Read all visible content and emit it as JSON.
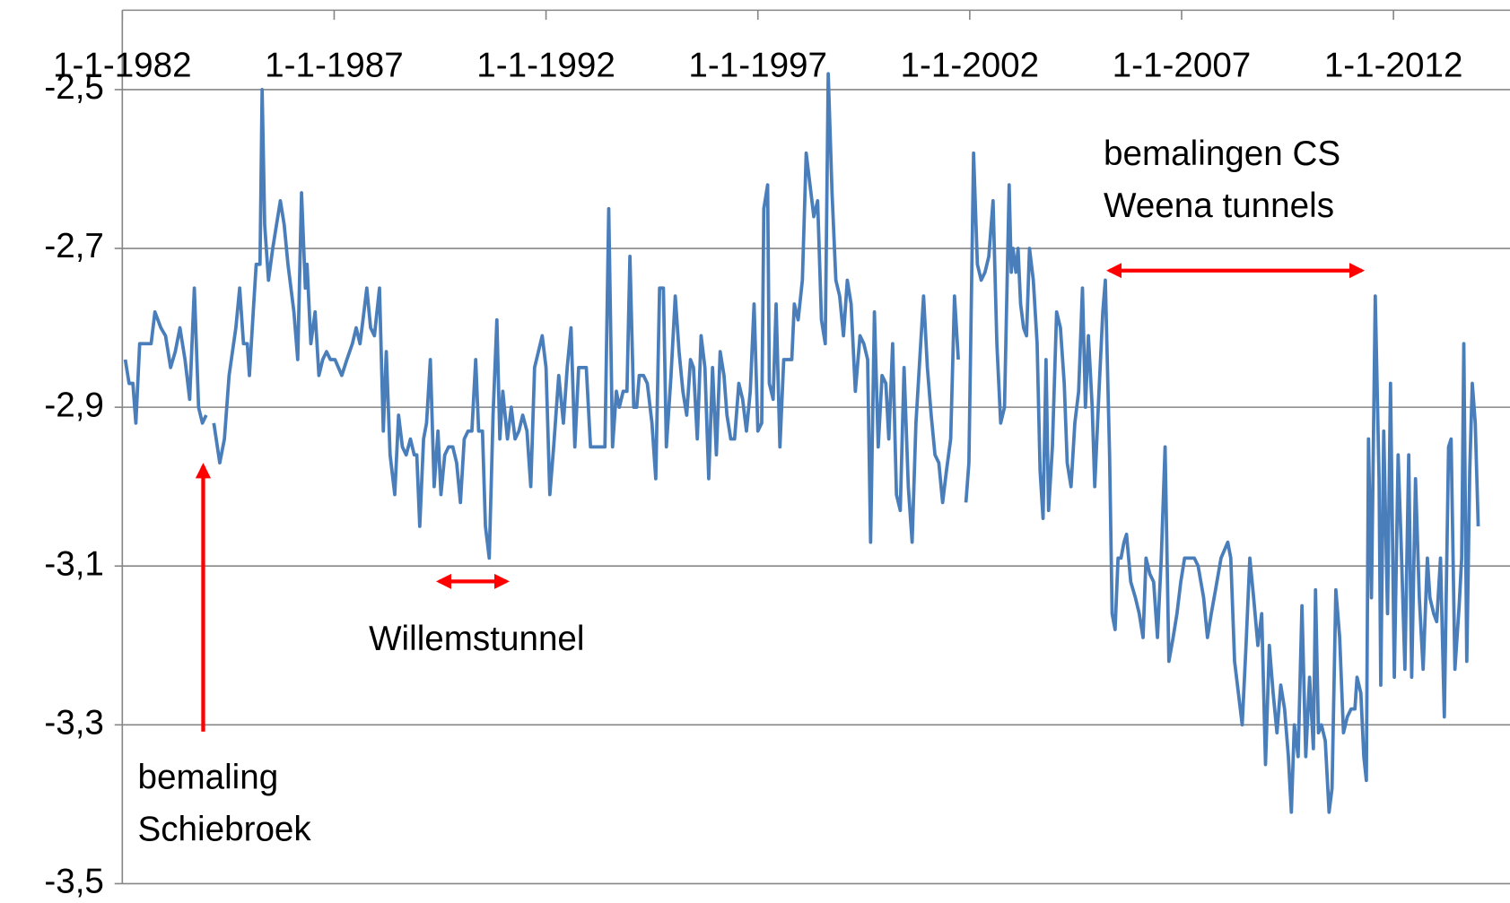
{
  "chart_data": {
    "type": "line",
    "annotations": [
      "bemalingen CS",
      "Weena tunnels",
      "Willemstunnel",
      "bemaling",
      "Schiebroek"
    ],
    "xlim": [
      1982,
      2014.75
    ],
    "xticks": [
      {
        "value": 1982,
        "label": "1-1-1982"
      },
      {
        "value": 1987,
        "label": "1-1-1987"
      },
      {
        "value": 1992,
        "label": "1-1-1992"
      },
      {
        "value": 1997,
        "label": "1-1-1997"
      },
      {
        "value": 2002,
        "label": "1-1-2002"
      },
      {
        "value": 2007,
        "label": "1-1-2007"
      },
      {
        "value": 2012,
        "label": "1-1-2012"
      }
    ],
    "ylim": [
      -3.5,
      -2.4
    ],
    "yticks": [
      {
        "value": -2.5,
        "label": "-2,5"
      },
      {
        "value": -2.7,
        "label": "-2,7"
      },
      {
        "value": -2.9,
        "label": "-2,9"
      },
      {
        "value": -3.1,
        "label": "-3,1"
      },
      {
        "value": -3.3,
        "label": "-3,3"
      },
      {
        "value": -3.5,
        "label": "-3,5"
      }
    ],
    "grid": true,
    "x": [
      1982.07,
      1982.16,
      1982.25,
      1982.32,
      1982.41,
      1982.52,
      1982.68,
      1982.77,
      1982.91,
      1983.02,
      1983.14,
      1983.25,
      1983.36,
      1983.48,
      1983.59,
      1983.7,
      1983.8,
      1983.89,
      1983.98,
      null,
      1984.16,
      1984.3,
      1984.41,
      1984.52,
      1984.68,
      1984.77,
      1984.86,
      1984.95,
      1985.0,
      1985.09,
      1985.16,
      1985.25,
      1985.3,
      1985.36,
      1985.45,
      1985.55,
      1985.64,
      1985.73,
      1985.82,
      1985.91,
      1986.05,
      1986.14,
      1986.23,
      1986.32,
      1986.36,
      1986.45,
      1986.55,
      1986.64,
      1986.73,
      1986.82,
      1986.91,
      1987.02,
      1987.18,
      1987.3,
      1987.43,
      1987.52,
      1987.61,
      1987.68,
      1987.77,
      1987.86,
      1987.95,
      1988.07,
      1988.16,
      1988.23,
      1988.32,
      1988.43,
      1988.52,
      1988.61,
      1988.7,
      1988.8,
      1988.89,
      1988.95,
      1989.02,
      1989.11,
      1989.18,
      1989.27,
      1989.36,
      1989.45,
      1989.52,
      1989.61,
      1989.7,
      1989.8,
      1989.89,
      1989.98,
      1990.07,
      1990.16,
      1990.25,
      1990.34,
      1990.41,
      1990.5,
      1990.57,
      1990.66,
      1990.75,
      1990.84,
      1990.91,
      1990.98,
      1991.09,
      1991.18,
      1991.27,
      1991.36,
      1991.45,
      1991.55,
      1991.64,
      1991.73,
      1991.82,
      1991.91,
      1992.0,
      1992.09,
      1992.18,
      1992.3,
      1992.41,
      1992.5,
      1992.59,
      1992.68,
      1992.77,
      1992.86,
      1992.95,
      1993.05,
      1993.14,
      1993.23,
      1993.32,
      1993.39,
      1993.48,
      1993.57,
      1993.66,
      1993.73,
      1993.82,
      1993.91,
      1993.98,
      1994.07,
      1994.14,
      1994.2,
      1994.3,
      1994.39,
      1994.5,
      1994.59,
      1994.68,
      1994.77,
      1994.84,
      1994.95,
      1995.05,
      1995.14,
      1995.23,
      1995.32,
      1995.41,
      1995.48,
      1995.57,
      1995.66,
      1995.75,
      1995.84,
      1995.93,
      1996.02,
      1996.11,
      1996.2,
      1996.27,
      1996.36,
      1996.45,
      1996.55,
      1996.64,
      1996.73,
      1996.82,
      1996.91,
      1997.0,
      1997.09,
      1997.14,
      1997.23,
      1997.27,
      1997.36,
      1997.43,
      1997.52,
      1997.61,
      1997.7,
      1997.8,
      1997.86,
      1997.95,
      1998.05,
      1998.14,
      1998.23,
      1998.32,
      1998.41,
      1998.5,
      1998.59,
      1998.66,
      1998.75,
      1998.84,
      1998.93,
      1999.02,
      1999.11,
      1999.2,
      1999.3,
      1999.41,
      1999.5,
      1999.59,
      1999.66,
      1999.75,
      1999.84,
      1999.93,
      2000.02,
      2000.09,
      2000.18,
      2000.27,
      2000.36,
      2000.45,
      2000.55,
      2000.64,
      2000.73,
      2000.82,
      2000.91,
      2001.0,
      2001.09,
      2001.18,
      2001.27,
      2001.36,
      2001.45,
      2001.55,
      2001.64,
      2001.73,
      null,
      2001.91,
      2001.98,
      2002.09,
      2002.18,
      2002.27,
      2002.36,
      2002.45,
      2002.55,
      2002.64,
      2002.73,
      2002.82,
      2002.93,
      2002.98,
      2003.02,
      2003.09,
      2003.14,
      2003.2,
      2003.27,
      2003.34,
      2003.41,
      2003.5,
      2003.59,
      2003.66,
      2003.73,
      2003.8,
      2003.86,
      2003.95,
      2004.05,
      2004.14,
      2004.23,
      2004.3,
      2004.39,
      2004.48,
      2004.57,
      2004.66,
      2004.73,
      2004.8,
      2004.89,
      2004.95,
      2005.05,
      2005.14,
      2005.2,
      2005.3,
      2005.36,
      2005.43,
      2005.5,
      2005.57,
      2005.64,
      2005.7,
      2005.8,
      2005.91,
      2006.0,
      2006.09,
      2006.16,
      2006.25,
      2006.34,
      2006.43,
      2006.52,
      2006.61,
      2006.7,
      2006.8,
      2006.89,
      2006.98,
      2007.07,
      2007.16,
      2007.3,
      2007.39,
      2007.52,
      2007.61,
      2007.7,
      2007.8,
      2007.93,
      2008.09,
      2008.16,
      2008.25,
      2008.34,
      2008.43,
      2008.52,
      2008.61,
      2008.7,
      2008.8,
      2008.89,
      2008.98,
      2009.07,
      2009.16,
      2009.25,
      2009.34,
      2009.43,
      2009.52,
      2009.59,
      2009.66,
      2009.75,
      2009.84,
      2009.93,
      2010.02,
      2010.11,
      2010.16,
      2010.23,
      2010.3,
      2010.39,
      2010.48,
      2010.55,
      2010.64,
      2010.73,
      2010.82,
      2010.91,
      2011.0,
      2011.09,
      2011.14,
      2011.23,
      2011.3,
      2011.36,
      2011.41,
      2011.48,
      2011.57,
      2011.66,
      2011.7,
      2011.77,
      2011.86,
      2011.93,
      2012.02,
      2012.11,
      2012.18,
      2012.27,
      2012.36,
      2012.43,
      2012.52,
      2012.61,
      2012.7,
      2012.8,
      2012.86,
      2012.95,
      2013.02,
      2013.11,
      2013.2,
      2013.3,
      2013.36,
      2013.45,
      2013.55,
      2013.61,
      2013.66,
      2013.73,
      2013.8,
      2013.86,
      2013.93,
      2014.0
    ],
    "series": [
      {
        "color": "#4a7ebb",
        "values": [
          -2.84,
          -2.87,
          -2.87,
          -2.92,
          -2.82,
          -2.82,
          -2.82,
          -2.78,
          -2.8,
          -2.81,
          -2.85,
          -2.83,
          -2.8,
          -2.84,
          -2.89,
          -2.75,
          -2.9,
          -2.92,
          -2.91,
          null,
          -2.92,
          -2.97,
          -2.94,
          -2.86,
          -2.8,
          -2.75,
          -2.82,
          -2.82,
          -2.86,
          -2.78,
          -2.72,
          -2.72,
          -2.5,
          -2.67,
          -2.74,
          -2.7,
          -2.67,
          -2.64,
          -2.67,
          -2.72,
          -2.78,
          -2.84,
          -2.63,
          -2.75,
          -2.72,
          -2.82,
          -2.78,
          -2.86,
          -2.84,
          -2.83,
          -2.84,
          -2.84,
          -2.86,
          -2.84,
          -2.82,
          -2.8,
          -2.82,
          -2.79,
          -2.75,
          -2.8,
          -2.81,
          -2.75,
          -2.93,
          -2.83,
          -2.96,
          -3.01,
          -2.91,
          -2.95,
          -2.96,
          -2.94,
          -2.96,
          -2.96,
          -3.05,
          -2.94,
          -2.92,
          -2.84,
          -3.0,
          -2.93,
          -3.01,
          -2.96,
          -2.95,
          -2.95,
          -2.97,
          -3.02,
          -2.94,
          -2.93,
          -2.93,
          -2.84,
          -2.93,
          -2.93,
          -3.05,
          -3.09,
          -2.91,
          -2.79,
          -2.94,
          -2.88,
          -2.94,
          -2.9,
          -2.94,
          -2.93,
          -2.91,
          -2.93,
          -3.0,
          -2.85,
          -2.83,
          -2.81,
          -2.85,
          -3.01,
          -2.95,
          -2.86,
          -2.92,
          -2.85,
          -2.8,
          -2.95,
          -2.85,
          -2.85,
          -2.85,
          -2.95,
          -2.95,
          -2.95,
          -2.95,
          -2.95,
          -2.65,
          -2.95,
          -2.88,
          -2.9,
          -2.88,
          -2.88,
          -2.71,
          -2.9,
          -2.9,
          -2.86,
          -2.86,
          -2.87,
          -2.92,
          -2.99,
          -2.75,
          -2.75,
          -2.95,
          -2.86,
          -2.76,
          -2.83,
          -2.88,
          -2.91,
          -2.84,
          -2.85,
          -2.94,
          -2.81,
          -2.85,
          -2.99,
          -2.85,
          -2.96,
          -2.83,
          -2.86,
          -2.91,
          -2.94,
          -2.94,
          -2.87,
          -2.89,
          -2.93,
          -2.88,
          -2.77,
          -2.93,
          -2.92,
          -2.65,
          -2.62,
          -2.87,
          -2.89,
          -2.77,
          -2.95,
          -2.84,
          -2.84,
          -2.84,
          -2.77,
          -2.79,
          -2.74,
          -2.58,
          -2.62,
          -2.66,
          -2.64,
          -2.79,
          -2.82,
          -2.48,
          -2.63,
          -2.74,
          -2.76,
          -2.81,
          -2.74,
          -2.77,
          -2.88,
          -2.81,
          -2.82,
          -2.84,
          -3.07,
          -2.78,
          -2.95,
          -2.86,
          -2.87,
          -2.94,
          -2.82,
          -3.01,
          -3.03,
          -2.85,
          -3.0,
          -3.07,
          -2.92,
          -2.84,
          -2.76,
          -2.85,
          -2.91,
          -2.96,
          -2.97,
          -3.02,
          -2.98,
          -2.94,
          -2.76,
          -2.84,
          null,
          -3.02,
          -2.97,
          -2.58,
          -2.72,
          -2.74,
          -2.73,
          -2.71,
          -2.64,
          -2.82,
          -2.92,
          -2.9,
          -2.62,
          -2.73,
          -2.7,
          -2.73,
          -2.7,
          -2.77,
          -2.8,
          -2.81,
          -2.7,
          -2.74,
          -2.82,
          -2.98,
          -3.04,
          -2.84,
          -3.03,
          -2.95,
          -2.78,
          -2.8,
          -2.87,
          -2.97,
          -3.0,
          -2.92,
          -2.88,
          -2.75,
          -2.9,
          -2.81,
          -2.9,
          -3.0,
          -2.88,
          -2.78,
          -2.74,
          -2.96,
          -3.16,
          -3.18,
          -3.09,
          -3.09,
          -3.07,
          -3.06,
          -3.12,
          -3.14,
          -3.16,
          -3.19,
          -3.09,
          -3.11,
          -3.12,
          -3.19,
          -3.09,
          -2.95,
          -3.22,
          -3.19,
          -3.16,
          -3.12,
          -3.09,
          -3.09,
          -3.09,
          -3.1,
          -3.14,
          -3.19,
          -3.16,
          -3.13,
          -3.09,
          -3.07,
          -3.09,
          -3.22,
          -3.26,
          -3.3,
          -3.2,
          -3.09,
          -3.14,
          -3.2,
          -3.16,
          -3.35,
          -3.2,
          -3.26,
          -3.31,
          -3.25,
          -3.28,
          -3.34,
          -3.41,
          -3.3,
          -3.34,
          -3.15,
          -3.34,
          -3.24,
          -3.33,
          -3.13,
          -3.31,
          -3.3,
          -3.32,
          -3.41,
          -3.38,
          -3.13,
          -3.19,
          -3.31,
          -3.29,
          -3.28,
          -3.28,
          -3.24,
          -3.26,
          -3.34,
          -3.37,
          -2.94,
          -3.14,
          -2.76,
          -2.99,
          -3.25,
          -2.93,
          -3.16,
          -2.87,
          -3.24,
          -2.96,
          -3.07,
          -3.23,
          -2.96,
          -3.24,
          -2.99,
          -3.14,
          -3.23,
          -3.09,
          -3.14,
          -3.16,
          -3.17,
          -3.09,
          -3.29,
          -2.95,
          -2.94,
          -3.23,
          -3.15,
          -3.09,
          -2.82,
          -3.22,
          -2.98,
          -2.87,
          -2.92,
          -3.05
        ]
      }
    ]
  }
}
